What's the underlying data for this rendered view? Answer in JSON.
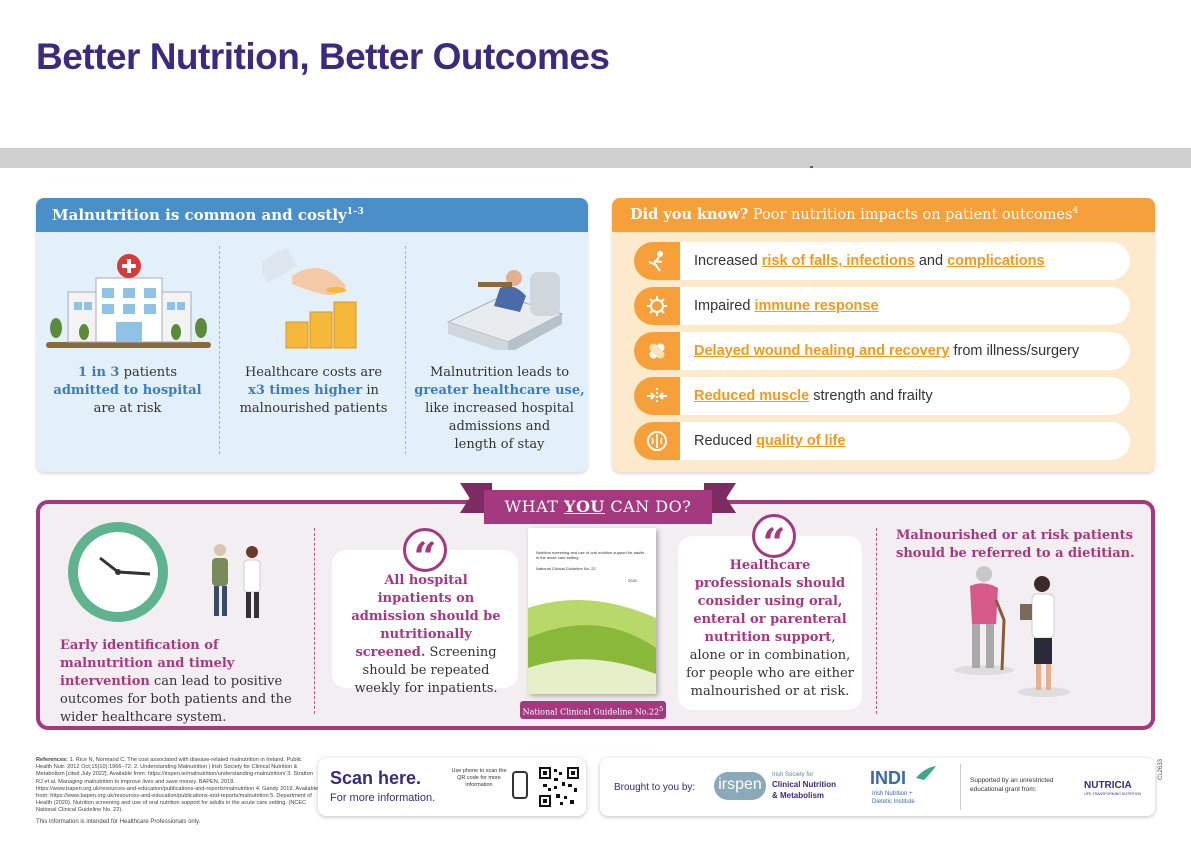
{
  "title": "Better Nutrition, Better Outcomes",
  "panel1": {
    "heading": "Malnutrition is common and costly",
    "heading_sup": "1–3",
    "col1": {
      "a": "1 in 3",
      "b": " patients",
      "c": "admitted to hospital",
      "d": "are at risk"
    },
    "col2": {
      "a": "Healthcare costs are",
      "b": "x3 times higher",
      "c": " in",
      "d": "malnourished patients"
    },
    "col3": {
      "a": "Malnutrition leads to",
      "b": "greater healthcare use,",
      "c": "like increased hospital",
      "d": "admissions and",
      "e": "length of stay"
    }
  },
  "panel2": {
    "heading_bold": "Did you know?",
    "heading_rest": " Poor nutrition impacts on patient outcomes",
    "heading_sup": "4",
    "rows": [
      {
        "pre": "Increased ",
        "hl1": "risk of falls, infections",
        "mid": " and ",
        "hl2": "complications",
        "post": ""
      },
      {
        "pre": "Impaired ",
        "hl1": "immune response",
        "mid": "",
        "hl2": "",
        "post": ""
      },
      {
        "pre": "",
        "hl1": "Delayed wound healing and recovery",
        "mid": " from illness/surgery",
        "hl2": "",
        "post": ""
      },
      {
        "pre": "",
        "hl1": "Reduced muscle",
        "mid": " strength and frailty",
        "hl2": "",
        "post": ""
      },
      {
        "pre": "Reduced ",
        "hl1": "quality of life",
        "mid": "",
        "hl2": "",
        "post": ""
      }
    ]
  },
  "panel3": {
    "banner_pre": "WHAT ",
    "banner_u": "YOU",
    "banner_post": " CAN DO?",
    "early": {
      "hl": "Early identification of malnutrition and timely intervention",
      "rest": " can lead to positive outcomes for both patients and the wider healthcare system."
    },
    "screen": {
      "hl": "All hospital inpatients on admission should be nutritionally screened.",
      "rest": " Screening should be repeated weekly for inpatients."
    },
    "guideline": {
      "label": "National Clinical Guideline No.22",
      "sup": "5",
      "doc_title": "Nutrition screening and use of oral nutrition support for adults in the acute care setting",
      "doc_sub": "National Clinical Guideline No. 22",
      "doc_year": "2020"
    },
    "consider": {
      "hl1": "Healthcare professionals should consider",
      "mid1": " ",
      "hl2": "using oral, enteral or parenteral nutrition support",
      "rest": ", alone or in combination, for people who are either malnourished or at risk."
    },
    "referred": "Malnourished or at risk patients should be referred to a dietitian."
  },
  "footer": {
    "refs_label": "References:",
    "refs": " 1. Rice N, Normand C. The cost associated with disease-related malnutrition in Ireland. Public Health Nutr. 2012 Oct;15(10):1966–72. 2. Understanding Malnutrition | Irish Society for Clinical Nutrition & Metabolism [cited July 2022]. Available from: https://irspen.ie/malnutrition/understanding-malnutrition/ 3. Stratton RJ et al. Managing malnutrition to improve lives and save money. BAPEN, 2018. https://www.bapen.org.uk/resources-and-education/publications-and-reports/malnutrition 4. Gandy 2019. Available from: https://www.bapen.org.uk/resources-and-education/publications-and-reports/malnutrition 5. Department of Health (2020). Nutrition screening and use of oral nutrition support for adults in the acute care setting. (NCEC National Clinical Guideline No. 22).",
    "refs_note": "This information is intended for Healthcare Professionals only.",
    "scan_title": "Scan here.",
    "scan_sub": "For more information.",
    "scan_hint": "Use phone to scan the QR code for more information",
    "brought": "Brought to you by:",
    "irspen": "irspen",
    "irspen_desc1": "Irish Society for",
    "irspen_desc2": "Clinical Nutrition",
    "irspen_desc3": "& Metabolism",
    "indi": "INDI",
    "indi_desc1": "Irish Nutrition +",
    "indi_desc2": "Dietetic Institute",
    "supported": "Supported by an unrestricted educational grant from:",
    "nutricia": "NUTRICIA",
    "nutricia_sub": "LIFE-TRANSFORMING NUTRITION",
    "code": "CL2633"
  },
  "colors": {
    "purple": "#3b2a7e",
    "magenta": "#a5397f",
    "blue": "#4b8fc8",
    "orange": "#f5a03a"
  }
}
